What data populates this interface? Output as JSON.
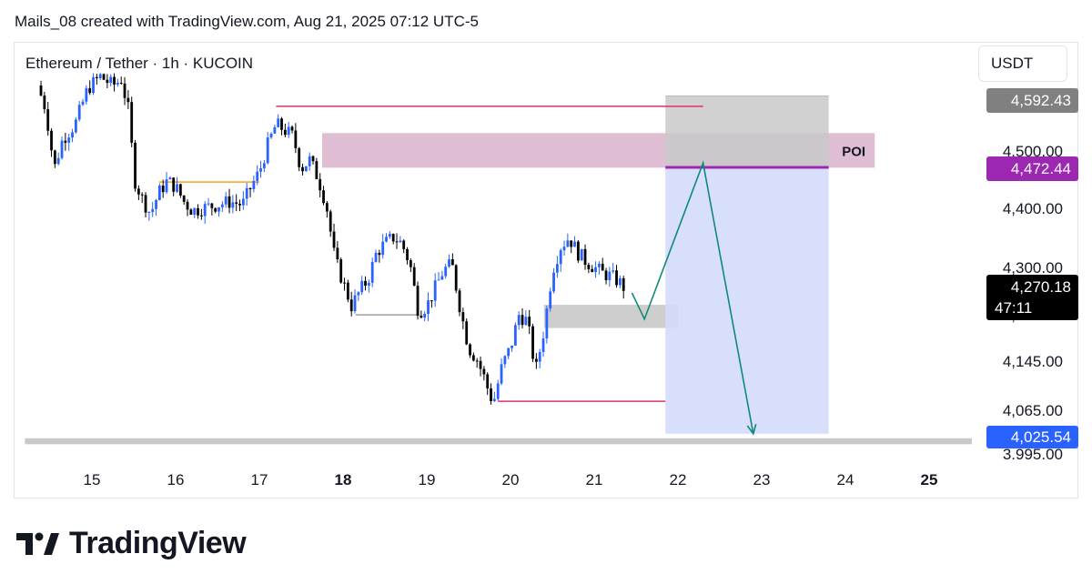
{
  "header": {
    "caption": "Mails_08 created with TradingView.com, Aug 21, 2025 07:12 UTC-5"
  },
  "symbol_label": "Ethereum / Tether · 1h · KUCOIN",
  "currency_label": "USDT",
  "price_axis": {
    "ticks": [
      "4,500.00",
      "4,400.00",
      "4,300.00",
      "4,220.00",
      "4,145.00",
      "4,065.00",
      "3,995.00"
    ]
  },
  "price_tags": {
    "stop": "4,592.43",
    "entry": "4,472.44",
    "current": "4,270.18",
    "countdown": "47:11",
    "target": "4,025.54"
  },
  "annotations": {
    "poi_label": "POI"
  },
  "colors": {
    "candle_up": "#2962ff",
    "candle_down": "#000000",
    "stop_tag": "#808080",
    "entry_tag": "#9c27b0",
    "target_tag": "#2962ff",
    "poi_zone": "#d9b3cd",
    "risk_zone": "#c9c9c9",
    "reward_zone": "#d3dcfb",
    "projection_line": "#11897a",
    "level_line": "#e0306a",
    "orange_level": "#f7a21b"
  },
  "footer": {
    "brand_name": "TradingView",
    "logo_icon": "tradingview-logo"
  },
  "chart_data": {
    "type": "candlestick",
    "title": "Ethereum / Tether · 1h · KUCOIN",
    "xlabel": "",
    "ylabel": "USDT",
    "x_ticks": [
      "15",
      "16",
      "17",
      "18",
      "19",
      "20",
      "21",
      "22",
      "23",
      "24",
      "25"
    ],
    "x_ticks_bold": [
      "18"
    ],
    "ylim": [
      3985,
      4640
    ],
    "y_ticks": [
      4500,
      4400,
      4300,
      4220,
      4145,
      4065,
      3995
    ],
    "x_range_days": [
      14.4,
      25.3
    ],
    "close_path": [
      {
        "t": 14.35,
        "p": 4610
      },
      {
        "t": 14.45,
        "p": 4570
      },
      {
        "t": 14.55,
        "p": 4470
      },
      {
        "t": 14.65,
        "p": 4520
      },
      {
        "t": 14.8,
        "p": 4545
      },
      {
        "t": 14.95,
        "p": 4605
      },
      {
        "t": 15.1,
        "p": 4625
      },
      {
        "t": 15.25,
        "p": 4610
      },
      {
        "t": 15.35,
        "p": 4620
      },
      {
        "t": 15.45,
        "p": 4560
      },
      {
        "t": 15.5,
        "p": 4455
      },
      {
        "t": 15.6,
        "p": 4420
      },
      {
        "t": 15.7,
        "p": 4395
      },
      {
        "t": 15.8,
        "p": 4430
      },
      {
        "t": 15.9,
        "p": 4450
      },
      {
        "t": 16.0,
        "p": 4440
      },
      {
        "t": 16.1,
        "p": 4415
      },
      {
        "t": 16.2,
        "p": 4400
      },
      {
        "t": 16.35,
        "p": 4405
      },
      {
        "t": 16.5,
        "p": 4410
      },
      {
        "t": 16.65,
        "p": 4415
      },
      {
        "t": 16.8,
        "p": 4410
      },
      {
        "t": 16.9,
        "p": 4440
      },
      {
        "t": 17.0,
        "p": 4465
      },
      {
        "t": 17.1,
        "p": 4510
      },
      {
        "t": 17.2,
        "p": 4545
      },
      {
        "t": 17.3,
        "p": 4535
      },
      {
        "t": 17.4,
        "p": 4525
      },
      {
        "t": 17.5,
        "p": 4470
      },
      {
        "t": 17.6,
        "p": 4485
      },
      {
        "t": 17.7,
        "p": 4455
      },
      {
        "t": 17.8,
        "p": 4410
      },
      {
        "t": 17.9,
        "p": 4320
      },
      {
        "t": 18.0,
        "p": 4280
      },
      {
        "t": 18.1,
        "p": 4240
      },
      {
        "t": 18.2,
        "p": 4265
      },
      {
        "t": 18.3,
        "p": 4285
      },
      {
        "t": 18.4,
        "p": 4330
      },
      {
        "t": 18.5,
        "p": 4345
      },
      {
        "t": 18.6,
        "p": 4355
      },
      {
        "t": 18.7,
        "p": 4345
      },
      {
        "t": 18.8,
        "p": 4310
      },
      {
        "t": 18.9,
        "p": 4230
      },
      {
        "t": 19.0,
        "p": 4240
      },
      {
        "t": 19.1,
        "p": 4270
      },
      {
        "t": 19.2,
        "p": 4300
      },
      {
        "t": 19.3,
        "p": 4310
      },
      {
        "t": 19.4,
        "p": 4235
      },
      {
        "t": 19.5,
        "p": 4170
      },
      {
        "t": 19.6,
        "p": 4150
      },
      {
        "t": 19.7,
        "p": 4115
      },
      {
        "t": 19.75,
        "p": 4090
      },
      {
        "t": 19.8,
        "p": 4080
      },
      {
        "t": 19.9,
        "p": 4140
      },
      {
        "t": 20.0,
        "p": 4170
      },
      {
        "t": 20.1,
        "p": 4225
      },
      {
        "t": 20.2,
        "p": 4215
      },
      {
        "t": 20.3,
        "p": 4130
      },
      {
        "t": 20.4,
        "p": 4200
      },
      {
        "t": 20.5,
        "p": 4300
      },
      {
        "t": 20.6,
        "p": 4340
      },
      {
        "t": 20.7,
        "p": 4355
      },
      {
        "t": 20.8,
        "p": 4330
      },
      {
        "t": 20.9,
        "p": 4315
      },
      {
        "t": 21.0,
        "p": 4305
      },
      {
        "t": 21.1,
        "p": 4295
      },
      {
        "t": 21.2,
        "p": 4290
      },
      {
        "t": 21.3,
        "p": 4280
      },
      {
        "t": 21.36,
        "p": 4270.18
      }
    ],
    "levels": [
      {
        "name": "swing-high-line",
        "price": 4575,
        "from_day": 17.2,
        "to_day": 22.3,
        "color": "#e0306a"
      },
      {
        "name": "orange-level",
        "price": 4448,
        "from_day": 15.8,
        "to_day": 17.0,
        "color": "#f7a21b"
      },
      {
        "name": "gray-level",
        "price": 4225,
        "from_day": 18.15,
        "to_day": 18.9,
        "color": "#9e9e9e"
      },
      {
        "name": "swing-low-line",
        "price": 4080,
        "from_day": 19.85,
        "to_day": 21.85,
        "color": "#e0306a"
      }
    ],
    "zones": [
      {
        "name": "poi-zone",
        "from_day": 17.75,
        "to_day": 24.35,
        "low": 4472,
        "high": 4530,
        "label": "POI"
      },
      {
        "name": "demand-zone",
        "from_day": 20.4,
        "to_day": 22.0,
        "low": 4203,
        "high": 4242
      },
      {
        "name": "risk-zone",
        "from_day": 21.85,
        "to_day": 23.8,
        "low": 4472.44,
        "high": 4592.43
      },
      {
        "name": "reward-zone",
        "from_day": 21.85,
        "to_day": 23.8,
        "low": 4025.54,
        "high": 4472.44
      },
      {
        "name": "support-band",
        "from_day": 14.2,
        "to_day": 25.6,
        "low": 4008,
        "high": 4018
      }
    ],
    "projection": [
      {
        "t": 21.45,
        "p": 4262
      },
      {
        "t": 21.6,
        "p": 4218
      },
      {
        "t": 22.3,
        "p": 4480
      },
      {
        "t": 22.9,
        "p": 4025.54
      }
    ],
    "entry": 4472.44,
    "stop": 4592.43,
    "target": 4025.54,
    "last_price": 4270.18
  }
}
